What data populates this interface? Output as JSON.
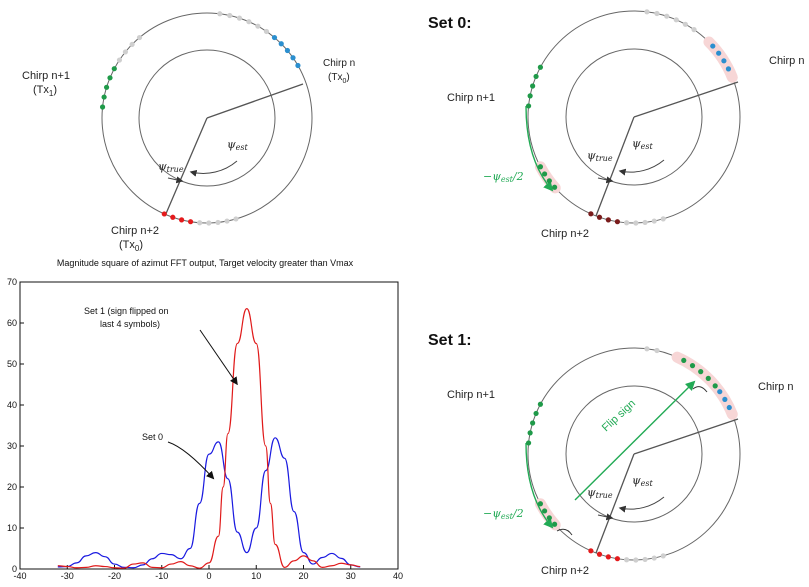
{
  "colors": {
    "tx0": "#2b8fcf",
    "tx1": "#1f9a49",
    "red": "#e41a1c",
    "dark_red": "#7a1c1c",
    "idle": "#cfcfcf",
    "green_arrow": "#22aa55",
    "highlight": "#f7d6d6",
    "set0_line": "#1a1ae0",
    "set1_line": "#e01a1a"
  },
  "diagram_top_left": {
    "chirp_n": "Chirp n",
    "chirp_n_tx": "(Tx",
    "chirp_n_tx_sub": "0",
    "chirp_n1": "Chirp n+1",
    "chirp_n1_tx": "(Tx",
    "chirp_n1_tx_sub": "1",
    "chirp_n2": "Chirp n+2",
    "chirp_n2_tx": "(Tx",
    "chirp_n2_tx_sub": "0",
    "psi_true_main": "ψ",
    "psi_true_sub": "true",
    "psi_est_main": "ψ",
    "psi_est_sub": "est"
  },
  "set0": {
    "title": "Set 0:",
    "chirp_n": "Chirp n",
    "chirp_n1": "Chirp n+1",
    "chirp_n2": "Chirp n+2",
    "shift_label": "−ψ",
    "shift_label_sub": "est",
    "shift_label_tail": "/2",
    "psi_true_main": "ψ",
    "psi_true_sub": "true",
    "psi_est_main": "ψ",
    "psi_est_sub": "est"
  },
  "set1": {
    "title": "Set 1:",
    "chirp_n": "Chirp n",
    "chirp_n1": "Chirp n+1",
    "chirp_n2": "Chirp n+2",
    "flip_label": "Flip sign",
    "shift_label": "−ψ",
    "shift_label_sub": "est",
    "shift_label_tail": "/2",
    "psi_true_main": "ψ",
    "psi_true_sub": "true",
    "psi_est_main": "ψ",
    "psi_est_sub": "est"
  },
  "chart_data": {
    "type": "line",
    "title": "Magnitude square of azimut FFT output, Target velocity greater than Vmax",
    "xlim": [
      -40,
      40
    ],
    "ylim": [
      0,
      70
    ],
    "xticks": [
      -40,
      -30,
      -20,
      -10,
      0,
      10,
      20,
      30,
      40
    ],
    "yticks": [
      0,
      10,
      20,
      30,
      40,
      50,
      60,
      70
    ],
    "grid": false,
    "annotations": [
      {
        "text_line1": "Set 1 (sign flipped on",
        "text_line2": "last 4 symbols)",
        "target_x": 6,
        "target_y": 45
      },
      {
        "text_line1": "Set 0",
        "text_line2": "",
        "target_x": 1,
        "target_y": 22
      }
    ],
    "series": [
      {
        "name": "Set 0",
        "x": [
          -32,
          -30,
          -28,
          -26,
          -24,
          -22,
          -20,
          -18,
          -16,
          -14,
          -12,
          -10,
          -8,
          -6,
          -4,
          -2,
          0,
          2,
          4,
          6,
          8,
          10,
          12,
          14,
          16,
          18,
          20,
          22,
          24,
          26,
          28,
          30,
          32
        ],
        "values": [
          0.5,
          0.6,
          1.5,
          3.2,
          4.0,
          3.0,
          1.2,
          0.4,
          0.3,
          1.0,
          2.5,
          3.8,
          3.5,
          2.5,
          5.0,
          16.0,
          28.0,
          31.0,
          22.0,
          9.0,
          4.0,
          10.0,
          24.0,
          32.0,
          27.0,
          14.0,
          4.0,
          1.2,
          2.8,
          3.8,
          2.6,
          1.0,
          0.5
        ]
      },
      {
        "name": "Set 1",
        "x": [
          -32,
          -30,
          -28,
          -26,
          -24,
          -22,
          -20,
          -18,
          -16,
          -14,
          -12,
          -10,
          -8,
          -6,
          -4,
          -2,
          0,
          2,
          3,
          4,
          6,
          8,
          10,
          12,
          13,
          14,
          16,
          18,
          20,
          22,
          24,
          26,
          28,
          30,
          32
        ],
        "values": [
          0.8,
          0.6,
          0.3,
          0.4,
          0.8,
          0.6,
          0.3,
          0.2,
          1.2,
          1.5,
          0.4,
          0.3,
          1.2,
          1.8,
          0.8,
          0.2,
          1.5,
          8.0,
          20.0,
          33.0,
          55.0,
          63.5,
          55.0,
          30.0,
          16.0,
          6.0,
          0.4,
          2.0,
          3.2,
          2.0,
          0.4,
          0.8,
          1.4,
          1.0,
          0.6
        ]
      }
    ]
  }
}
